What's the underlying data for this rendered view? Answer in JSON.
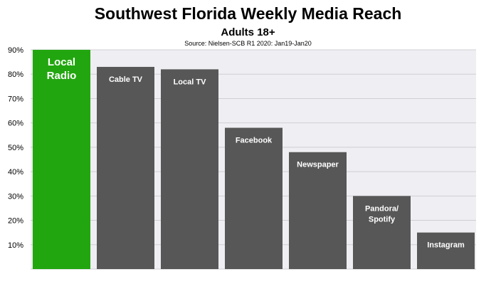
{
  "chart_data": {
    "type": "bar",
    "title": "Southwest Florida Weekly Media Reach",
    "subtitle": "Adults 18+",
    "source": "Source: Nielsen-SCB R1 2020: Jan19-Jan20",
    "categories": [
      "Local Radio",
      "Cable TV",
      "Local TV",
      "Facebook",
      "Newspaper",
      "Pandora/ Spotify",
      "Instagram"
    ],
    "label_lines": [
      [
        "Local",
        "Radio"
      ],
      [
        "Cable TV"
      ],
      [
        "Local TV"
      ],
      [
        "Facebook"
      ],
      [
        "Newspaper"
      ],
      [
        "Pandora/",
        "Spotify"
      ],
      [
        "Instagram"
      ]
    ],
    "values": [
      90,
      83,
      82,
      58,
      48,
      30,
      15
    ],
    "ylim": [
      0,
      90
    ],
    "yticks": [
      10,
      20,
      30,
      40,
      50,
      60,
      70,
      80,
      90
    ],
    "ytick_labels": [
      "10%",
      "20%",
      "30%",
      "40%",
      "50%",
      "60%",
      "70%",
      "80%",
      "90%"
    ],
    "grid": true,
    "colors": {
      "highlight": "#22a60f",
      "bar": "#575757",
      "plot_background": "#efeef2",
      "grid": "#cfcfd4"
    }
  }
}
